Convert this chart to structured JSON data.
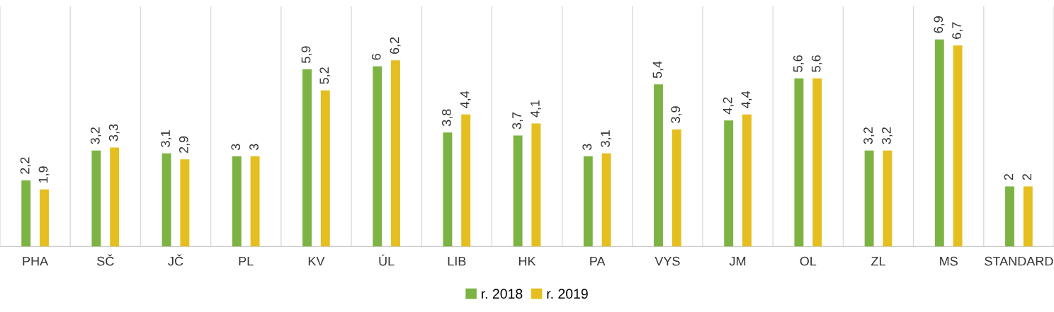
{
  "chart_data": {
    "type": "bar",
    "categories": [
      "PHA",
      "SČ",
      "JČ",
      "PL",
      "KV",
      "ÚL",
      "LIB",
      "HK",
      "PA",
      "VYS",
      "JM",
      "OL",
      "ZL",
      "MS",
      "STANDARD"
    ],
    "series": [
      {
        "name": "r. 2018",
        "color": "#7cb342",
        "values": [
          2.2,
          3.2,
          3.1,
          3,
          5.9,
          6,
          3.8,
          3.7,
          3,
          5.4,
          4.2,
          5.6,
          3.2,
          6.9,
          2
        ],
        "value_labels": [
          "2,2",
          "3,2",
          "3,1",
          "3",
          "5,9",
          "6",
          "3,8",
          "3,7",
          "3",
          "5,4",
          "4,2",
          "5,6",
          "3,2",
          "6,9",
          "2"
        ]
      },
      {
        "name": "r. 2019",
        "color": "#e5be1f",
        "values": [
          1.9,
          3.3,
          2.9,
          3,
          5.2,
          6.2,
          4.4,
          4.1,
          3.1,
          3.9,
          4.4,
          5.6,
          3.2,
          6.7,
          2
        ],
        "value_labels": [
          "1,9",
          "3,3",
          "2,9",
          "3",
          "5,2",
          "6,2",
          "4,4",
          "4,1",
          "3,1",
          "3,9",
          "4,4",
          "5,6",
          "3,2",
          "6,7",
          "2"
        ]
      }
    ],
    "grid": "x",
    "legend": "bottom",
    "tick_labels": "x"
  }
}
